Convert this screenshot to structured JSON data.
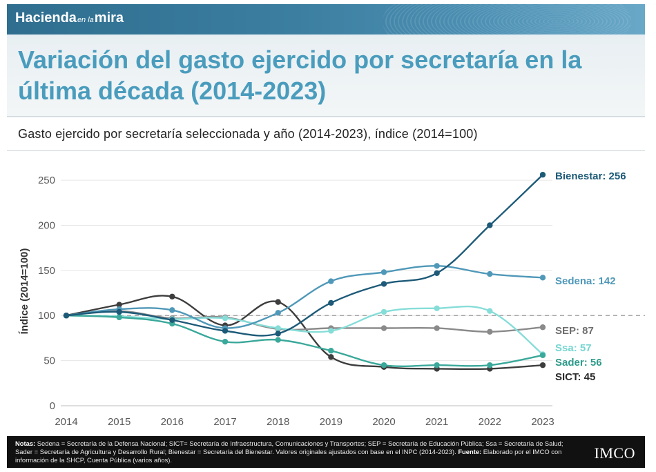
{
  "header": {
    "brand_main": "Hacienda",
    "brand_mid": "en la",
    "brand_end": "mira"
  },
  "title": "Variación del gasto ejercido por secretaría en la última década (2014-2023)",
  "subtitle": "Gasto ejercido por secretaría seleccionada y año (2014-2023), índice (2014=100)",
  "chart_data": {
    "type": "line",
    "x": [
      "2014",
      "2015",
      "2016",
      "2017",
      "2018",
      "2019",
      "2020",
      "2021",
      "2022",
      "2023"
    ],
    "ylabel": "Índice (2014=100)",
    "ylim": [
      0,
      260
    ],
    "yticks": [
      0,
      50,
      100,
      150,
      200,
      250
    ],
    "reference_line": 100,
    "series": [
      {
        "name": "SICT",
        "label": "SICT: 45",
        "color": "#3d3d3d",
        "label_color": "#2a2a2a",
        "values": [
          100,
          112,
          121,
          89,
          115,
          54,
          43,
          41,
          41,
          45
        ]
      },
      {
        "name": "SEP",
        "label": "SEP: 87",
        "color": "#8a8a8a",
        "label_color": "#6e6e6e",
        "values": [
          100,
          105,
          97,
          98,
          85,
          86,
          86,
          86,
          82,
          87
        ]
      },
      {
        "name": "Ssa",
        "label": "Ssa: 57",
        "color": "#86ddd8",
        "label_color": "#75d6d1",
        "values": [
          100,
          99,
          96,
          97,
          86,
          83,
          104,
          108,
          105,
          57
        ]
      },
      {
        "name": "Sader",
        "label": "Sader: 56",
        "color": "#3aa89a",
        "label_color": "#2e9a8b",
        "values": [
          100,
          98,
          91,
          71,
          73,
          61,
          45,
          45,
          45,
          56
        ]
      },
      {
        "name": "Sedena",
        "label": "Sedena: 142",
        "color": "#4f98b8",
        "label_color": "#4f98b8",
        "values": [
          100,
          107,
          106,
          86,
          103,
          138,
          148,
          155,
          146,
          142
        ]
      },
      {
        "name": "Bienestar",
        "label": "Bienestar: 256",
        "color": "#1d5a78",
        "label_color": "#1d5a78",
        "values": [
          100,
          104,
          95,
          83,
          80,
          114,
          135,
          147,
          200,
          256
        ]
      }
    ]
  },
  "footer": {
    "notes_label": "Notas:",
    "notes_text": "Sedena = Secretaría de la Defensa Nacional; SICT= Secretaría de Infraestructura, Comunicaciones y Transportes; SEP = Secretaría de Educación Pública; Ssa = Secretaría de Salud; Sader = Secretaría de Agricultura y Desarrollo Rural; Bienestar = Secretaría del Bienestar. Valores originales ajustados con base en el INPC (2014-2023).",
    "source_label": "Fuente:",
    "source_text": "Elaborado por el IMCO con información de la SHCP, Cuenta Pública (varios años).",
    "logo": "IMCO"
  }
}
